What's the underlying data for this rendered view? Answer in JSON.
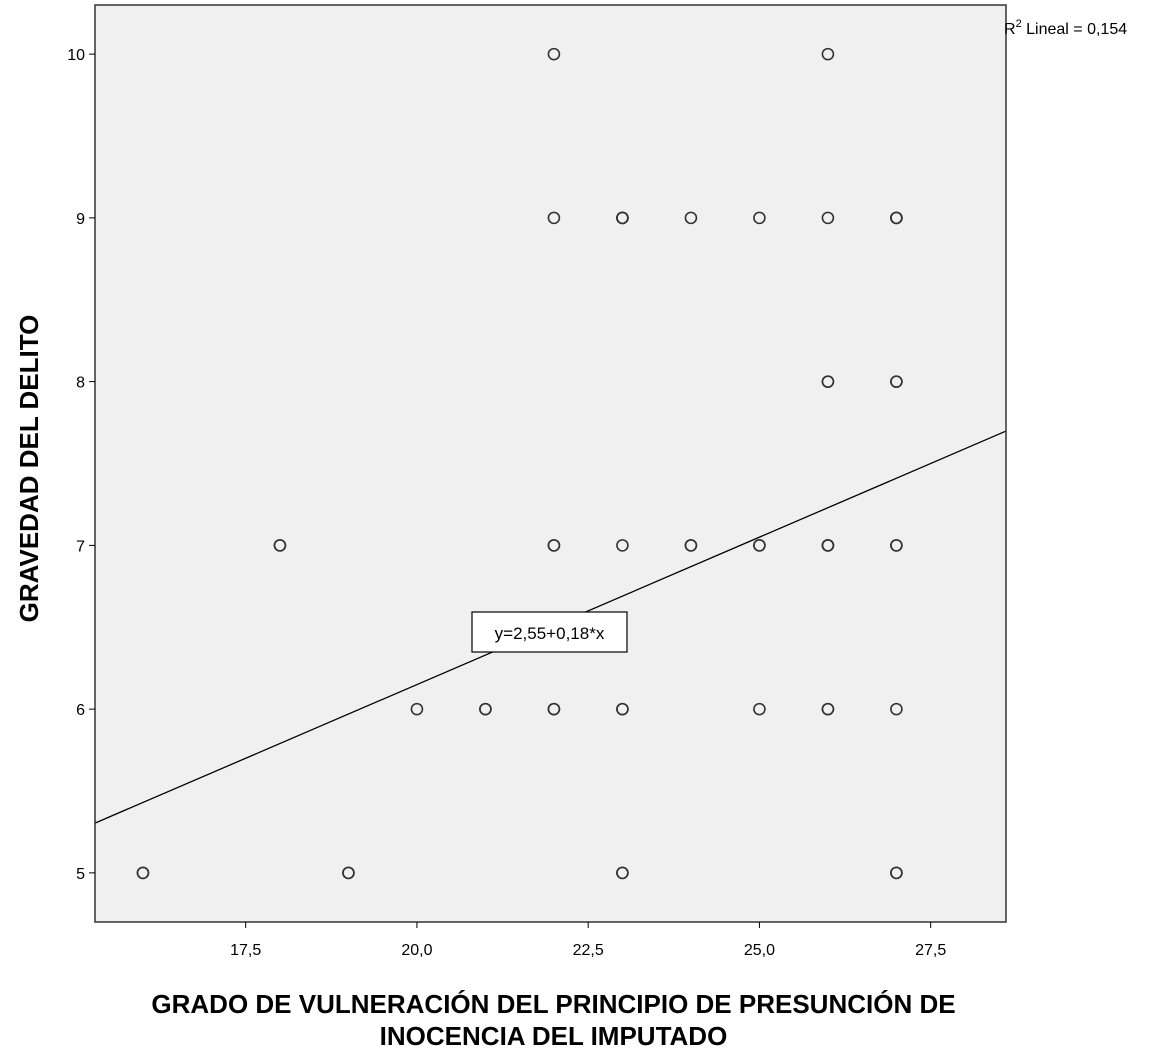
{
  "chart_data": {
    "type": "scatter",
    "xlabel_line1": "GRADO DE VULNERACIÓN DEL PRINCIPIO DE PRESUNCIÓN DE",
    "xlabel_line2": "INOCENCIA DEL IMPUTADO",
    "ylabel": "GRAVEDAD DEL DELITO",
    "xlim": [
      15.3,
      28.6
    ],
    "ylim": [
      4.7,
      10.3
    ],
    "x_ticks": [
      17.5,
      20.0,
      22.5,
      25.0,
      27.5
    ],
    "x_tick_labels": [
      "17,5",
      "20,0",
      "22,5",
      "25,0",
      "27,5"
    ],
    "y_ticks": [
      5,
      6,
      7,
      8,
      9,
      10
    ],
    "y_tick_labels": [
      "5",
      "6",
      "7",
      "8",
      "9",
      "10"
    ],
    "grid": false,
    "background_color": "#f0f0f0",
    "marker_color": "#333333",
    "points": [
      {
        "x": 16,
        "y": 5
      },
      {
        "x": 16,
        "y": 5
      },
      {
        "x": 19,
        "y": 5
      },
      {
        "x": 19,
        "y": 5
      },
      {
        "x": 23,
        "y": 5
      },
      {
        "x": 23,
        "y": 5
      },
      {
        "x": 27,
        "y": 5
      },
      {
        "x": 27,
        "y": 5
      },
      {
        "x": 20,
        "y": 6
      },
      {
        "x": 21,
        "y": 6
      },
      {
        "x": 21,
        "y": 6
      },
      {
        "x": 22,
        "y": 6
      },
      {
        "x": 22,
        "y": 6
      },
      {
        "x": 23,
        "y": 6
      },
      {
        "x": 23,
        "y": 6
      },
      {
        "x": 25,
        "y": 6
      },
      {
        "x": 26,
        "y": 6
      },
      {
        "x": 26,
        "y": 6
      },
      {
        "x": 27,
        "y": 6
      },
      {
        "x": 18,
        "y": 7
      },
      {
        "x": 18,
        "y": 7
      },
      {
        "x": 22,
        "y": 7
      },
      {
        "x": 22,
        "y": 7
      },
      {
        "x": 23,
        "y": 7
      },
      {
        "x": 24,
        "y": 7
      },
      {
        "x": 24,
        "y": 7
      },
      {
        "x": 25,
        "y": 7
      },
      {
        "x": 25,
        "y": 7
      },
      {
        "x": 26,
        "y": 7
      },
      {
        "x": 26,
        "y": 7
      },
      {
        "x": 26,
        "y": 7
      },
      {
        "x": 27,
        "y": 7
      },
      {
        "x": 27,
        "y": 7
      },
      {
        "x": 26,
        "y": 8
      },
      {
        "x": 26,
        "y": 8
      },
      {
        "x": 27,
        "y": 8
      },
      {
        "x": 27,
        "y": 8
      },
      {
        "x": 22,
        "y": 9
      },
      {
        "x": 23,
        "y": 9
      },
      {
        "x": 23,
        "y": 9
      },
      {
        "x": 23,
        "y": 9
      },
      {
        "x": 24,
        "y": 9
      },
      {
        "x": 25,
        "y": 9
      },
      {
        "x": 26,
        "y": 9
      },
      {
        "x": 27,
        "y": 9
      },
      {
        "x": 27,
        "y": 9
      },
      {
        "x": 27,
        "y": 9
      },
      {
        "x": 22,
        "y": 10
      },
      {
        "x": 26,
        "y": 10
      }
    ],
    "fit_line": {
      "intercept": 2.55,
      "slope": 0.18
    },
    "equation_label": "y=2,55+0,18*x",
    "r2_prefix": "R",
    "r2_sup": "2",
    "r2_text": " Lineal = 0,154"
  }
}
